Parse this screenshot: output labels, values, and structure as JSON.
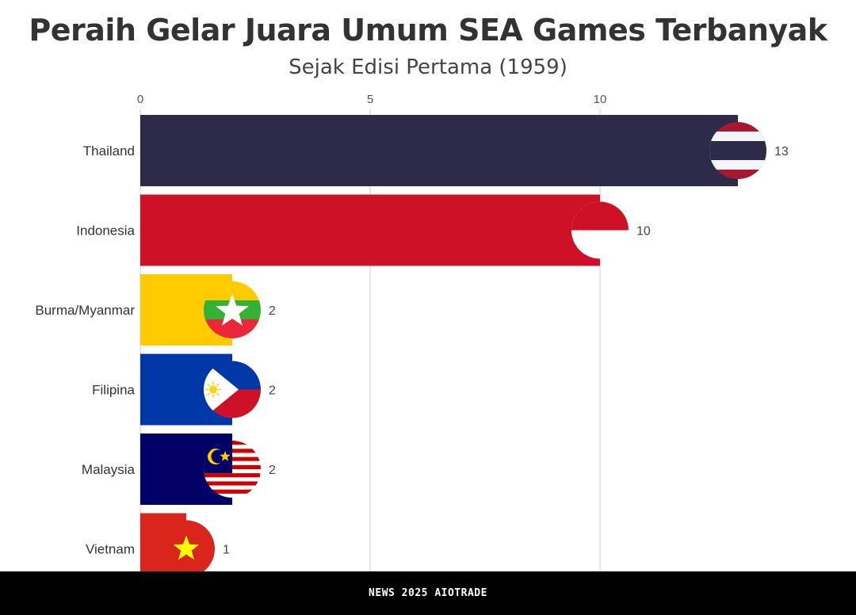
{
  "chart_data": {
    "type": "bar",
    "orientation": "horizontal",
    "title": "Peraih Gelar Juara Umum SEA Games Terbanyak",
    "subtitle": "Sejak Edisi Pertama (1959)",
    "xlim": [
      0,
      14
    ],
    "xticks": [
      0,
      5,
      10
    ],
    "x_axis_position": "top",
    "grid": true,
    "categories": [
      "Thailand",
      "Indonesia",
      "Burma/Myanmar",
      "Filipina",
      "Malaysia",
      "Vietnam"
    ],
    "values": [
      13,
      10,
      2,
      2,
      2,
      1
    ],
    "colors": [
      "#2e2a4a",
      "#ce1126",
      "#fecb00",
      "#0038a8",
      "#010066",
      "#da251d"
    ],
    "flag_icons": [
      "flag-thailand-icon",
      "flag-indonesia-icon",
      "flag-myanmar-icon",
      "flag-philippines-icon",
      "flag-malaysia-icon",
      "flag-vietnam-icon"
    ]
  },
  "footer": {
    "text": "NEWS 2025 AIOTRADE"
  }
}
